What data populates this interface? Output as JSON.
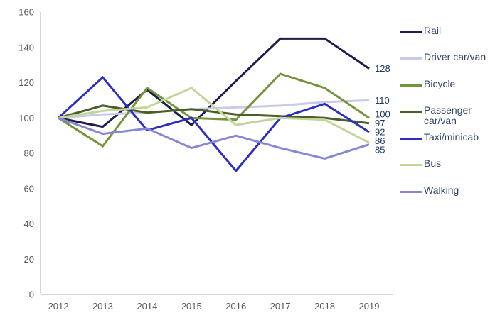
{
  "chart_data": {
    "type": "line",
    "title": "",
    "categories": [
      "2012",
      "2013",
      "2014",
      "2015",
      "2016",
      "2017",
      "2018",
      "2019"
    ],
    "series": [
      {
        "name": "Rail",
        "color": "#1e1b4f",
        "values": [
          100,
          95,
          116,
          96,
          121,
          145,
          145,
          128
        ],
        "end_label": "128"
      },
      {
        "name": "Driver car/van",
        "color": "#c9c9e9",
        "values": [
          100,
          102,
          103,
          105,
          106,
          107,
          109,
          110
        ],
        "end_label": "110"
      },
      {
        "name": "Bicycle",
        "color": "#76933c",
        "values": [
          100,
          84,
          117,
          100,
          99,
          125,
          117,
          100
        ],
        "end_label": "100"
      },
      {
        "name": "Passenger car/van",
        "color": "#4a5e26",
        "values": [
          100,
          107,
          103,
          105,
          102,
          101,
          100,
          97
        ],
        "end_label": "97"
      },
      {
        "name": "Taxi/minicab",
        "color": "#2e2ec0",
        "values": [
          100,
          123,
          93,
          100,
          70,
          100,
          108,
          92
        ],
        "end_label": "92"
      },
      {
        "name": "Bus",
        "color": "#c2d69a",
        "values": [
          100,
          104,
          106,
          117,
          96,
          100,
          99,
          86
        ],
        "end_label": "86"
      },
      {
        "name": "Walking",
        "color": "#8787d6",
        "values": [
          100,
          91,
          94,
          83,
          90,
          83,
          77,
          85
        ],
        "end_label": "85"
      }
    ],
    "xlabel": "",
    "ylabel": "",
    "ylim": [
      0,
      160
    ],
    "yticks": [
      "0",
      "20",
      "40",
      "60",
      "80",
      "100",
      "120",
      "140",
      "160"
    ],
    "grid": false,
    "legend_position": "right",
    "axis_line_color": "#c6c6c6",
    "axis_text_color": "#595959",
    "end_label_color": "#1f3864",
    "legend_text_color": "#2f4468"
  }
}
